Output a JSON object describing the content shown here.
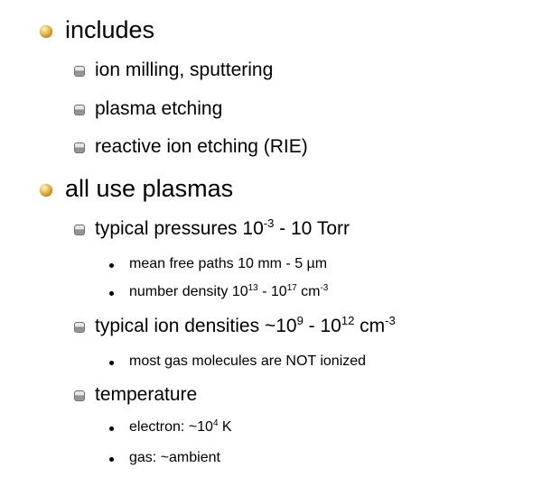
{
  "slide": {
    "items": [
      {
        "level": 1,
        "icon": "gold-orb-bullet-icon",
        "text": "includes"
      },
      {
        "level": 2,
        "icon": "gray-square-bullet-icon",
        "text": "ion milling, sputtering"
      },
      {
        "level": 2,
        "icon": "gray-square-bullet-icon",
        "text": "plasma etching"
      },
      {
        "level": 2,
        "icon": "gray-square-bullet-icon",
        "text": "reactive ion etching (RIE)"
      },
      {
        "level": 1,
        "icon": "gold-orb-bullet-icon",
        "text": "all use plasmas"
      },
      {
        "level": 2,
        "icon": "gray-square-bullet-icon",
        "parts": [
          "typical pressures 10",
          "-3",
          " - 10 Torr"
        ]
      },
      {
        "level": 3,
        "icon": "dot-bullet-icon",
        "text": "mean free paths 10 mm - 5 µm"
      },
      {
        "level": 3,
        "icon": "dot-bullet-icon",
        "parts": [
          "number density 10",
          "13",
          " - 10",
          "17",
          " cm",
          "-3"
        ]
      },
      {
        "level": 2,
        "icon": "gray-square-bullet-icon",
        "parts": [
          "typical ion densities ~10",
          "9",
          " - 10",
          "12",
          " cm",
          "-3"
        ]
      },
      {
        "level": 3,
        "icon": "dot-bullet-icon",
        "text": "most gas molecules are NOT ionized"
      },
      {
        "level": 2,
        "icon": "gray-square-bullet-icon",
        "text": "temperature"
      },
      {
        "level": 3,
        "icon": "dot-bullet-icon",
        "parts": [
          "electron: ~10",
          "4",
          " K"
        ]
      },
      {
        "level": 3,
        "icon": "dot-bullet-icon",
        "text": "gas: ~ambient"
      }
    ]
  }
}
